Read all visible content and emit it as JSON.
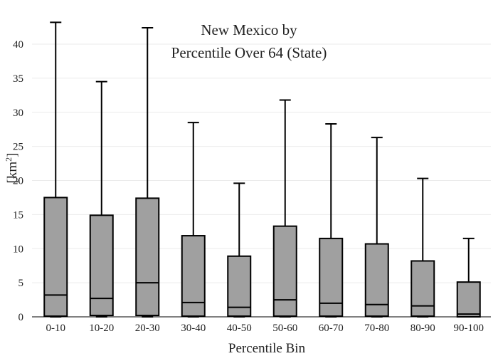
{
  "chart_data": {
    "type": "box",
    "title_lines": [
      "New Mexico  by",
      "Percentile Over 64 (State)"
    ],
    "xlabel": "Percentile Bin",
    "ylabel_base": "[km",
    "ylabel_sup": "2",
    "ylabel_close": "]",
    "ylim": [
      0,
      44
    ],
    "yticks": [
      0,
      5,
      10,
      15,
      20,
      25,
      30,
      35,
      40
    ],
    "grid": true,
    "box_color": "#a0a0a0",
    "line_color": "#000000",
    "categories": [
      "0-10",
      "10-20",
      "20-30",
      "30-40",
      "40-50",
      "50-60",
      "60-70",
      "70-80",
      "80-90",
      "90-100"
    ],
    "boxes": [
      {
        "min": 0.0,
        "q1": 0.1,
        "median": 3.2,
        "q3": 17.5,
        "max": 43.2
      },
      {
        "min": 0.0,
        "q1": 0.2,
        "median": 2.7,
        "q3": 14.9,
        "max": 34.5
      },
      {
        "min": 0.0,
        "q1": 0.2,
        "median": 5.0,
        "q3": 17.4,
        "max": 42.4
      },
      {
        "min": 0.0,
        "q1": 0.1,
        "median": 2.1,
        "q3": 11.9,
        "max": 28.5
      },
      {
        "min": 0.0,
        "q1": 0.1,
        "median": 1.4,
        "q3": 8.9,
        "max": 19.6
      },
      {
        "min": 0.0,
        "q1": 0.1,
        "median": 2.5,
        "q3": 13.3,
        "max": 31.8
      },
      {
        "min": 0.0,
        "q1": 0.1,
        "median": 2.0,
        "q3": 11.5,
        "max": 28.3
      },
      {
        "min": 0.0,
        "q1": 0.1,
        "median": 1.8,
        "q3": 10.7,
        "max": 26.3
      },
      {
        "min": 0.0,
        "q1": 0.1,
        "median": 1.6,
        "q3": 8.2,
        "max": 20.3
      },
      {
        "min": 0.0,
        "q1": 0.0,
        "median": 0.4,
        "q3": 5.1,
        "max": 11.5
      }
    ]
  }
}
